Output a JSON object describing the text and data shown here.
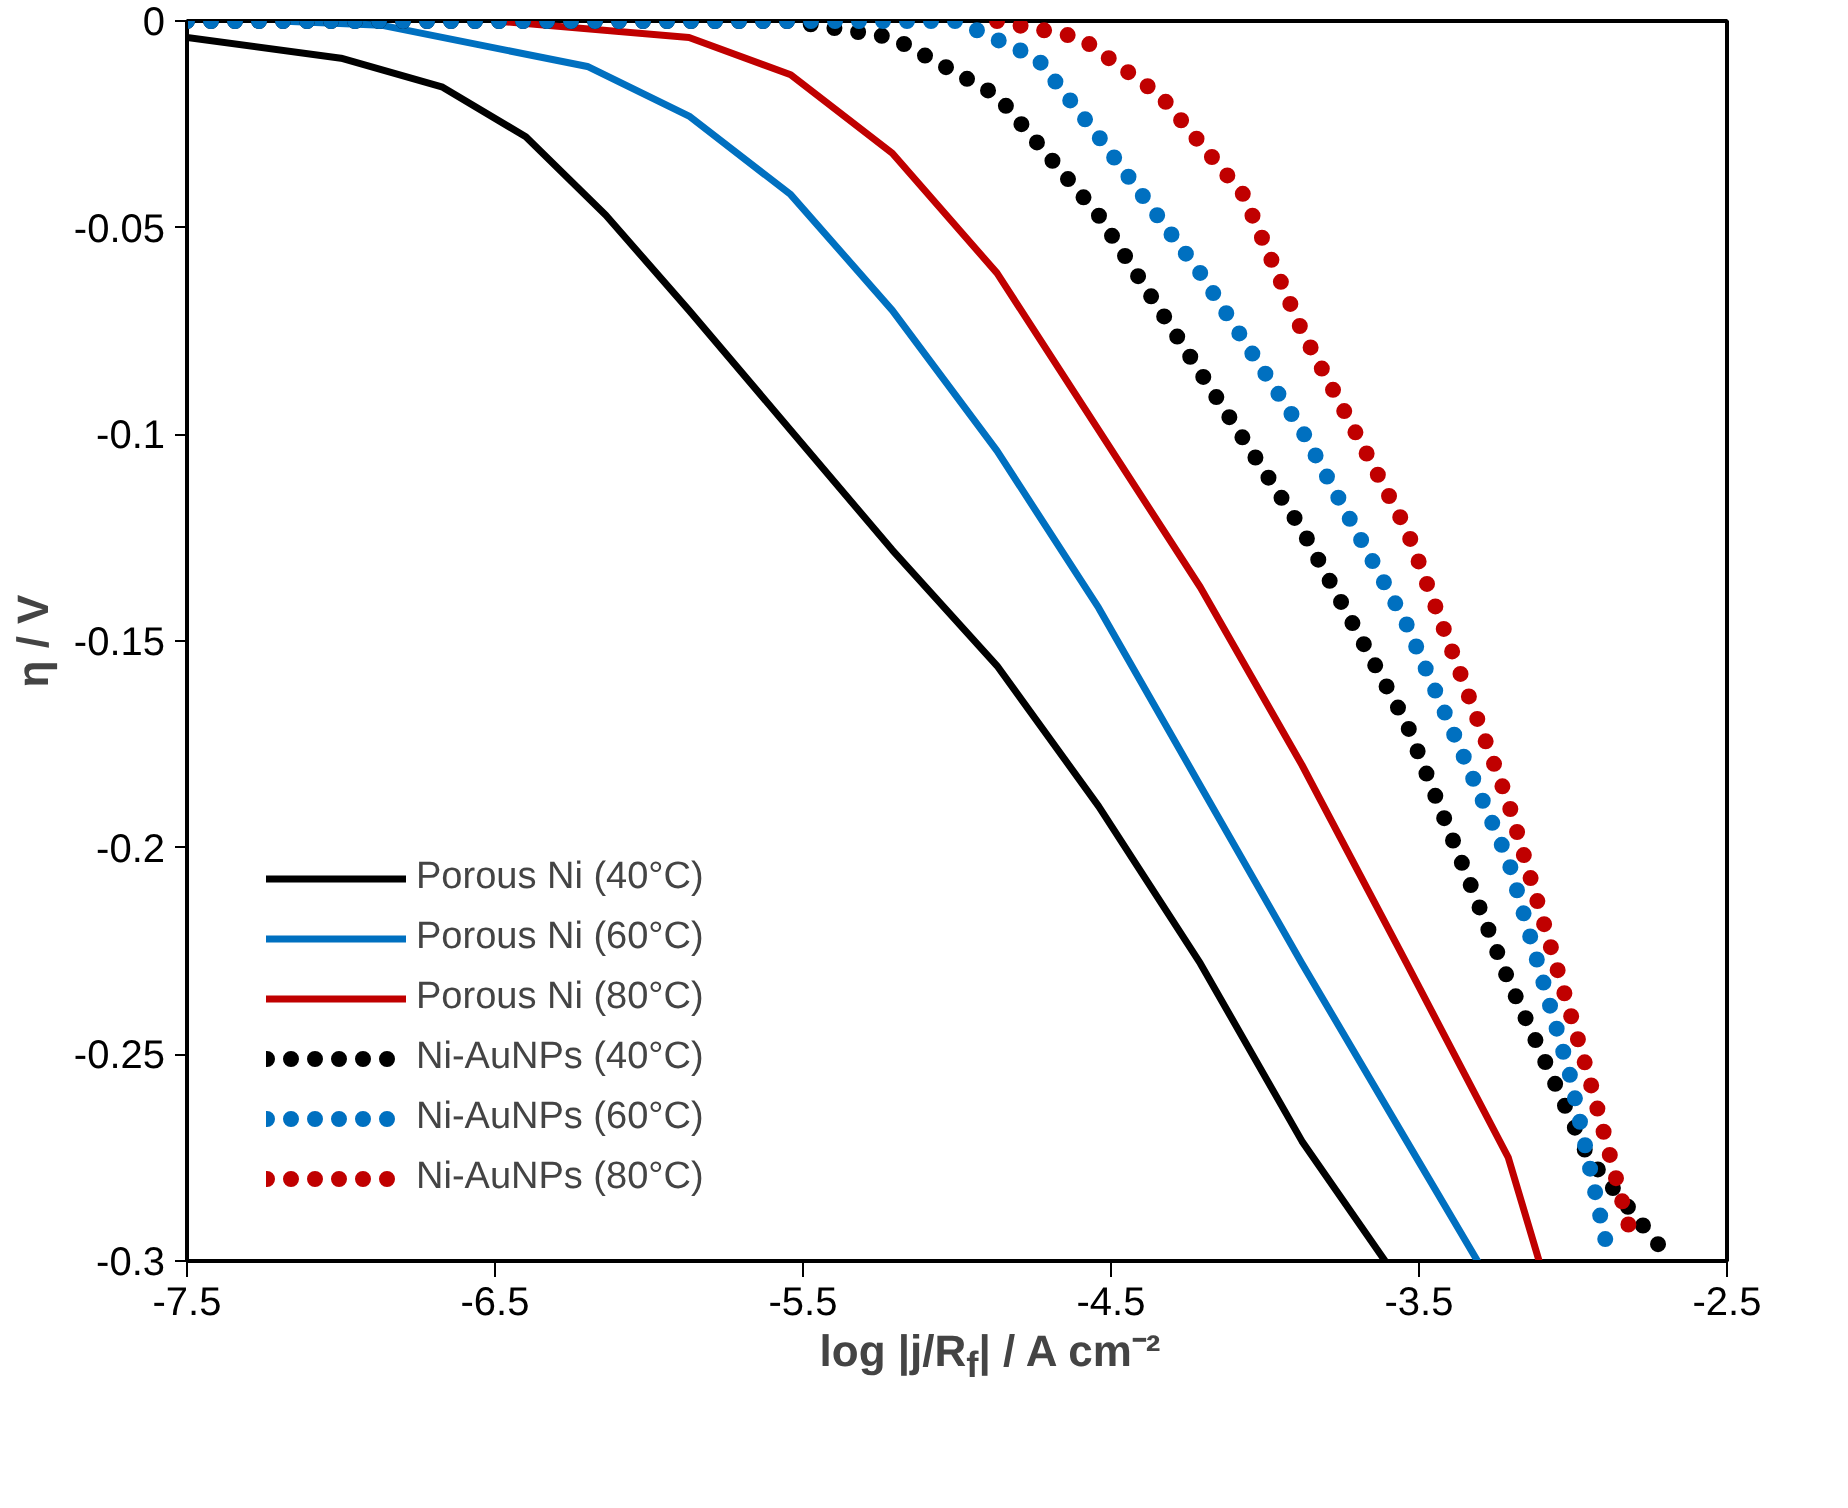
{
  "chart_data": {
    "type": "line",
    "xlabel": "log |j/R$_{f}$| / A cm⁻²",
    "ylabel": "η / V",
    "xlim": [
      -7.5,
      -2.5
    ],
    "ylim": [
      -0.3,
      0
    ],
    "xticks": [
      -7.5,
      -6.5,
      -5.5,
      -4.5,
      -3.5,
      -2.5
    ],
    "yticks": [
      0,
      -0.05,
      -0.1,
      -0.15,
      -0.2,
      -0.25,
      -0.3
    ],
    "grid": false,
    "legend": "left",
    "series": [
      {
        "name": "Porous Ni (40°C)",
        "color": "#000000",
        "line_style": "solid",
        "x": [
          -7.5,
          -7.0,
          -6.67,
          -6.4,
          -6.14,
          -5.87,
          -5.54,
          -5.21,
          -4.87,
          -4.54,
          -4.21,
          -3.88,
          -3.61
        ],
        "values": [
          -0.004,
          -0.009,
          -0.016,
          -0.028,
          -0.047,
          -0.07,
          -0.099,
          -0.128,
          -0.156,
          -0.19,
          -0.228,
          -0.271,
          -0.3
        ]
      },
      {
        "name": "Porous Ni (60°C)",
        "color": "#0070c0",
        "line_style": "solid",
        "x": [
          -7.2,
          -6.87,
          -6.2,
          -5.87,
          -5.54,
          -5.21,
          -4.87,
          -4.54,
          -4.21,
          -3.88,
          -3.54,
          -3.31
        ],
        "values": [
          0,
          -0.001,
          -0.011,
          -0.023,
          -0.042,
          -0.07,
          -0.104,
          -0.142,
          -0.185,
          -0.228,
          -0.271,
          -0.3
        ]
      },
      {
        "name": "Porous Ni (80°C)",
        "color": "#c00000",
        "line_style": "solid",
        "x": [
          -6.5,
          -5.87,
          -5.54,
          -5.21,
          -4.87,
          -4.54,
          -4.21,
          -3.88,
          -3.54,
          -3.21,
          -3.11
        ],
        "values": [
          0,
          -0.004,
          -0.013,
          -0.032,
          -0.061,
          -0.099,
          -0.137,
          -0.18,
          -0.228,
          -0.275,
          -0.3
        ]
      },
      {
        "name": "Ni-AuNPs (40°C)",
        "color": "#000000",
        "line_style": "dotted",
        "x": [
          -7.5,
          -5.54,
          -5.21,
          -4.87,
          -4.54,
          -4.21,
          -3.88,
          -3.54,
          -3.21,
          -2.95,
          -2.68
        ],
        "values": [
          0,
          0,
          -0.004,
          -0.018,
          -0.047,
          -0.085,
          -0.123,
          -0.17,
          -0.232,
          -0.275,
          -0.3
        ]
      },
      {
        "name": "Ni-AuNPs (60°C)",
        "color": "#0070c0",
        "line_style": "dotted",
        "x": [
          -7.5,
          -5.0,
          -4.74,
          -4.54,
          -4.21,
          -3.88,
          -3.54,
          -3.21,
          -3.01,
          -2.88
        ],
        "values": [
          0,
          0,
          -0.009,
          -0.028,
          -0.061,
          -0.099,
          -0.146,
          -0.203,
          -0.255,
          -0.3
        ]
      },
      {
        "name": "Ni-AuNPs (80°C)",
        "color": "#c00000",
        "line_style": "dotted",
        "x": [
          -4.87,
          -4.6,
          -4.34,
          -4.07,
          -3.88,
          -3.54,
          -3.21,
          -2.95,
          -2.81
        ],
        "values": [
          0,
          -0.004,
          -0.018,
          -0.042,
          -0.075,
          -0.123,
          -0.189,
          -0.255,
          -0.294
        ]
      }
    ]
  }
}
